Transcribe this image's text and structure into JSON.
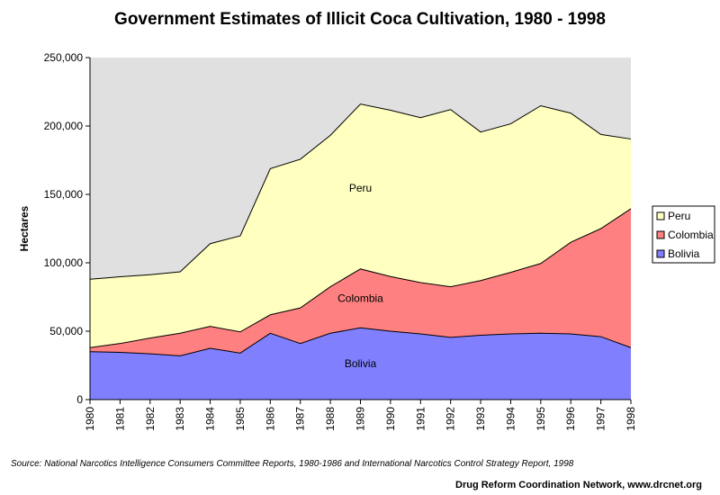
{
  "chart_data": {
    "type": "area",
    "stacked": true,
    "title": "Government Estimates of Illicit Coca Cultivation, 1980 - 1998",
    "xlabel": "",
    "ylabel": "Hectares",
    "ylim": [
      0,
      250000
    ],
    "yticks": [
      0,
      50000,
      100000,
      150000,
      200000,
      250000
    ],
    "ytick_labels": [
      "0",
      "50,000",
      "100,000",
      "150,000",
      "200,000",
      "250,000"
    ],
    "x": [
      "1980",
      "1981",
      "1982",
      "1983",
      "1984",
      "1985",
      "1986",
      "1987",
      "1988",
      "1989",
      "1990",
      "1991",
      "1992",
      "1993",
      "1994",
      "1995",
      "1996",
      "1997",
      "1998"
    ],
    "grid": false,
    "legend_position": "right",
    "series": [
      {
        "name": "Bolivia",
        "color": "#8080ff",
        "values": [
          35000,
          34500,
          33500,
          32000,
          37500,
          34000,
          48500,
          41000,
          48500,
          52500,
          50000,
          48000,
          45500,
          47000,
          48000,
          48500,
          48000,
          46000,
          38000
        ]
      },
      {
        "name": "Colombia",
        "color": "#ff8080",
        "values": [
          3000,
          6500,
          11500,
          16500,
          16000,
          15500,
          13500,
          26000,
          34000,
          43000,
          40000,
          37500,
          37000,
          40000,
          45000,
          51000,
          67000,
          79000,
          101500
        ]
      },
      {
        "name": "Peru",
        "color": "#ffffc0",
        "values": [
          50000,
          48800,
          46300,
          44900,
          60500,
          70200,
          106800,
          108700,
          110700,
          120500,
          121500,
          120600,
          129500,
          108600,
          108600,
          115300,
          94400,
          68800,
          51000
        ]
      }
    ],
    "area_labels": [
      "Peru",
      "Colombia",
      "Bolivia"
    ],
    "legend": [
      "Peru",
      "Colombia",
      "Bolivia"
    ]
  },
  "footer": {
    "source": "Source: National Narcotics Intelligence Consumers Committee Reports, 1980-1986 and International Narcotics Control Strategy Report, 1998",
    "credit": "Drug Reform Coordination Network, www.drcnet.org"
  }
}
